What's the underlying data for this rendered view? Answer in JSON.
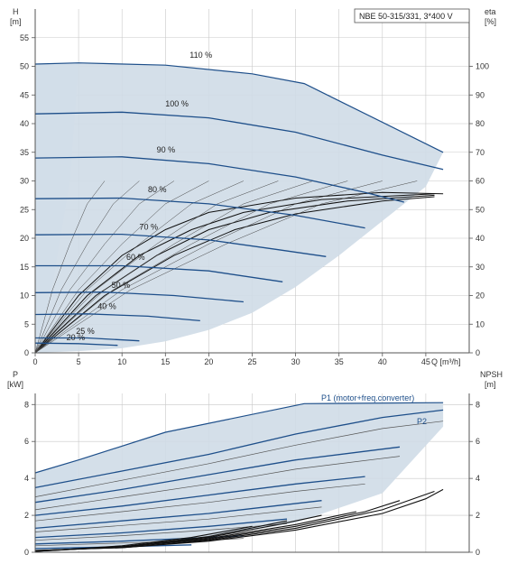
{
  "chart_data": [
    {
      "type": "line",
      "title": "NBE 50-315/331, 3*400 V",
      "x_label": "Q [m³/h]",
      "y_label": "H",
      "y_unit": "[m]",
      "y2_label": "eta",
      "y2_unit": "[%]",
      "xlim": [
        0,
        50
      ],
      "ylim": [
        0,
        60
      ],
      "y2lim": [
        0,
        120
      ],
      "x_ticks": [
        0,
        5,
        10,
        15,
        20,
        25,
        30,
        35,
        40,
        45
      ],
      "y_ticks": [
        0,
        5,
        10,
        15,
        20,
        25,
        30,
        35,
        40,
        45,
        50,
        55
      ],
      "y2_ticks": [
        0,
        10,
        20,
        30,
        40,
        50,
        60,
        70,
        80,
        90,
        100
      ],
      "grid": true,
      "operating_envelope": [
        [
          0,
          0
        ],
        [
          0,
          50.4
        ],
        [
          2,
          50.5
        ],
        [
          5,
          50.6
        ],
        [
          15,
          50.2
        ],
        [
          25,
          48.7
        ],
        [
          31,
          47
        ],
        [
          47,
          35
        ],
        [
          45,
          29
        ],
        [
          40,
          23
        ],
        [
          35,
          17
        ],
        [
          30,
          11.5
        ],
        [
          25,
          7
        ],
        [
          20,
          4
        ],
        [
          15,
          2
        ],
        [
          10,
          0.8
        ],
        [
          5,
          0.3
        ],
        [
          0,
          0
        ]
      ],
      "speed_curves": [
        {
          "name": "110 %",
          "points": [
            [
              0,
              50.4
            ],
            [
              5,
              50.6
            ],
            [
              15,
              50.2
            ],
            [
              25,
              48.7
            ],
            [
              31,
              47
            ]
          ]
        },
        {
          "name": "100 %",
          "points": [
            [
              0,
              41.7
            ],
            [
              10,
              42
            ],
            [
              20,
              41
            ],
            [
              30,
              38.5
            ],
            [
              40,
              34.5
            ],
            [
              47,
              32
            ]
          ]
        },
        {
          "name": "90 %",
          "points": [
            [
              0,
              34
            ],
            [
              10,
              34.2
            ],
            [
              20,
              33
            ],
            [
              30,
              30.7
            ],
            [
              38,
              28
            ],
            [
              42.5,
              26.3
            ]
          ]
        },
        {
          "name": "80 %",
          "points": [
            [
              0,
              26.9
            ],
            [
              10,
              27
            ],
            [
              20,
              26
            ],
            [
              30,
              24
            ],
            [
              38,
              21.8
            ]
          ]
        },
        {
          "name": "70 %",
          "points": [
            [
              0,
              20.6
            ],
            [
              10,
              20.7
            ],
            [
              20,
              19.7
            ],
            [
              28,
              18
            ],
            [
              33.5,
              16.8
            ]
          ]
        },
        {
          "name": "60 %",
          "points": [
            [
              0,
              15.2
            ],
            [
              10,
              15.2
            ],
            [
              20,
              14.3
            ],
            [
              28.5,
              12.4
            ]
          ]
        },
        {
          "name": "50 %",
          "points": [
            [
              0,
              10.5
            ],
            [
              8,
              10.6
            ],
            [
              16,
              10
            ],
            [
              24,
              8.9
            ]
          ]
        },
        {
          "name": "40 %",
          "points": [
            [
              0,
              6.7
            ],
            [
              6,
              6.8
            ],
            [
              13,
              6.4
            ],
            [
              19,
              5.6
            ]
          ]
        },
        {
          "name": "25 %",
          "points": [
            [
              0,
              2.6
            ],
            [
              6,
              2.6
            ],
            [
              12,
              2.1
            ]
          ]
        },
        {
          "name": "20 %",
          "points": [
            [
              0,
              1.7
            ],
            [
              5,
              1.6
            ],
            [
              9.5,
              1.3
            ]
          ]
        }
      ],
      "efficiency_curves": [
        {
          "points": [
            [
              0,
              0
            ],
            [
              5,
              20
            ],
            [
              10,
              34
            ],
            [
              15,
              43
            ],
            [
              20,
              49
            ],
            [
              30,
              54
            ],
            [
              40,
              56
            ],
            [
              47,
              55.5
            ]
          ]
        },
        {
          "points": [
            [
              0,
              0
            ],
            [
              6,
              20
            ],
            [
              12,
              34
            ],
            [
              18,
              43
            ],
            [
              24,
              49
            ],
            [
              33,
              53.5
            ],
            [
              46,
              55.5
            ]
          ]
        },
        {
          "points": [
            [
              0,
              0
            ],
            [
              7,
              20
            ],
            [
              14,
              34
            ],
            [
              20,
              43
            ],
            [
              27,
              49
            ],
            [
              36,
              53
            ],
            [
              46,
              55
            ]
          ]
        },
        {
          "points": [
            [
              0,
              0
            ],
            [
              8,
              20
            ],
            [
              16,
              34
            ],
            [
              23,
              43
            ],
            [
              30,
              48.5
            ],
            [
              40,
              53
            ],
            [
              46,
              54.5
            ]
          ]
        }
      ]
    },
    {
      "type": "line",
      "x_label": "",
      "y_label": "P",
      "y_unit": "[kW]",
      "y2_label": "NPSH",
      "y2_unit": "[m]",
      "xlim": [
        0,
        50
      ],
      "ylim": [
        0,
        8.6
      ],
      "y2lim": [
        0,
        8.6
      ],
      "y_ticks": [
        0,
        2,
        4,
        6,
        8
      ],
      "y2_ticks": [
        0,
        2,
        4,
        6,
        8
      ],
      "grid": true,
      "annotations": [
        "P1 (motor+freq.converter)",
        "P2"
      ],
      "power_envelope": [
        [
          0,
          0
        ],
        [
          0,
          4.3
        ],
        [
          5,
          5
        ],
        [
          15,
          6.5
        ],
        [
          31,
          8.05
        ],
        [
          47,
          8.1
        ],
        [
          47,
          6.8
        ],
        [
          40,
          3.2
        ],
        [
          30,
          1.6
        ],
        [
          20,
          0.8
        ],
        [
          10,
          0.3
        ],
        [
          0,
          0
        ]
      ],
      "p1_curves": [
        {
          "points": [
            [
              0,
              3.5
            ],
            [
              10,
              4.4
            ],
            [
              20,
              5.3
            ],
            [
              30,
              6.4
            ],
            [
              40,
              7.3
            ],
            [
              47,
              7.7
            ]
          ]
        },
        {
          "points": [
            [
              0,
              2.7
            ],
            [
              10,
              3.4
            ],
            [
              20,
              4.2
            ],
            [
              30,
              5.0
            ],
            [
              42,
              5.7
            ]
          ]
        },
        {
          "points": [
            [
              0,
              2.0
            ],
            [
              10,
              2.5
            ],
            [
              20,
              3.1
            ],
            [
              30,
              3.7
            ],
            [
              38,
              4.1
            ]
          ]
        },
        {
          "points": [
            [
              0,
              1.3
            ],
            [
              10,
              1.7
            ],
            [
              20,
              2.1
            ],
            [
              33,
              2.8
            ]
          ]
        },
        {
          "points": [
            [
              0,
              0.8
            ],
            [
              10,
              1.05
            ],
            [
              20,
              1.4
            ],
            [
              29,
              1.8
            ]
          ]
        },
        {
          "points": [
            [
              0,
              0.45
            ],
            [
              10,
              0.6
            ],
            [
              20,
              0.8
            ],
            [
              24,
              0.9
            ]
          ]
        },
        {
          "points": [
            [
              0,
              0.2
            ],
            [
              10,
              0.3
            ],
            [
              18,
              0.4
            ]
          ]
        }
      ],
      "p2_curves": [
        {
          "points": [
            [
              0,
              3.0
            ],
            [
              10,
              3.9
            ],
            [
              20,
              4.8
            ],
            [
              30,
              5.8
            ],
            [
              40,
              6.7
            ],
            [
              47,
              7.1
            ]
          ]
        },
        {
          "points": [
            [
              0,
              2.3
            ],
            [
              10,
              3.0
            ],
            [
              20,
              3.7
            ],
            [
              30,
              4.5
            ],
            [
              42,
              5.2
            ]
          ]
        },
        {
          "points": [
            [
              0,
              1.7
            ],
            [
              10,
              2.2
            ],
            [
              20,
              2.7
            ],
            [
              30,
              3.3
            ],
            [
              38,
              3.7
            ]
          ]
        },
        {
          "points": [
            [
              0,
              1.1
            ],
            [
              10,
              1.45
            ],
            [
              20,
              1.8
            ],
            [
              33,
              2.45
            ]
          ]
        },
        {
          "points": [
            [
              0,
              0.65
            ],
            [
              10,
              0.9
            ],
            [
              20,
              1.2
            ],
            [
              29,
              1.55
            ]
          ]
        },
        {
          "points": [
            [
              0,
              0.35
            ],
            [
              10,
              0.5
            ],
            [
              20,
              0.65
            ],
            [
              24,
              0.75
            ]
          ]
        }
      ],
      "npsh_curves": [
        {
          "points": [
            [
              0,
              0.1
            ],
            [
              10,
              0.25
            ],
            [
              20,
              0.6
            ],
            [
              30,
              1.2
            ],
            [
              40,
              2.1
            ],
            [
              45,
              2.9
            ],
            [
              47,
              3.4
            ]
          ]
        },
        {
          "points": [
            [
              0,
              0.1
            ],
            [
              10,
              0.25
            ],
            [
              20,
              0.65
            ],
            [
              30,
              1.3
            ],
            [
              40,
              2.3
            ],
            [
              46,
              3.3
            ]
          ]
        },
        {
          "points": [
            [
              0,
              0.08
            ],
            [
              10,
              0.3
            ],
            [
              20,
              0.7
            ],
            [
              30,
              1.4
            ],
            [
              38,
              2.2
            ],
            [
              42,
              2.8
            ]
          ]
        },
        {
          "points": [
            [
              0,
              0.08
            ],
            [
              10,
              0.3
            ],
            [
              20,
              0.75
            ],
            [
              30,
              1.5
            ],
            [
              37,
              2.2
            ]
          ]
        },
        {
          "points": [
            [
              0,
              0.05
            ],
            [
              10,
              0.3
            ],
            [
              20,
              0.8
            ],
            [
              28,
              1.5
            ],
            [
              33,
              2.0
            ]
          ]
        },
        {
          "points": [
            [
              0,
              0.05
            ],
            [
              10,
              0.3
            ],
            [
              20,
              0.85
            ],
            [
              29,
              1.7
            ]
          ]
        },
        {
          "points": [
            [
              0,
              0.05
            ],
            [
              10,
              0.35
            ],
            [
              18,
              0.8
            ],
            [
              25,
              1.4
            ]
          ]
        }
      ]
    }
  ],
  "colors": {
    "envelope_fill": "#cfdbe7",
    "envelope_light": "#e6eef7",
    "curve_blue": "#1e4f8a",
    "curve_black": "#111111",
    "grid": "#c8c8c8",
    "axis": "#555555"
  }
}
